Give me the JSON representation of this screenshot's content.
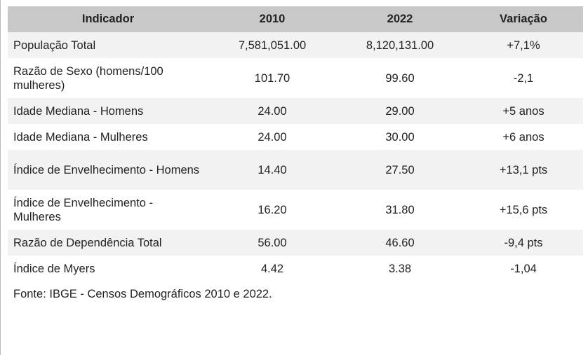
{
  "table": {
    "headers": [
      "Indicador",
      "2010",
      "2022",
      "Variação"
    ],
    "rows": [
      {
        "indicador": "População Total",
        "v2010": "7,581,051.00",
        "v2022": "8,120,131.00",
        "variacao": "+7,1%"
      },
      {
        "indicador": "Razão de Sexo (homens/100 mulheres)",
        "v2010": "101.70",
        "v2022": "99.60",
        "variacao": "-2,1"
      },
      {
        "indicador": "Idade Mediana - Homens",
        "v2010": "24.00",
        "v2022": "29.00",
        "variacao": "+5 anos"
      },
      {
        "indicador": "Idade Mediana - Mulheres",
        "v2010": "24.00",
        "v2022": "30.00",
        "variacao": "+6 anos"
      },
      {
        "indicador": "Índice de Envelhecimento - Homens",
        "v2010": "14.40",
        "v2022": "27.50",
        "variacao": "+13,1 pts"
      },
      {
        "indicador": "Índice de Envelhecimento - Mulheres",
        "v2010": "16.20",
        "v2022": "31.80",
        "variacao": "+15,6 pts"
      },
      {
        "indicador": "Razão de Dependência Total",
        "v2010": "56.00",
        "v2022": "46.60",
        "variacao": "-9,4 pts"
      },
      {
        "indicador": "Índice de Myers",
        "v2010": "4.42",
        "v2022": "3.38",
        "variacao": "-1,04"
      }
    ]
  },
  "source": "Fonte: IBGE - Censos Demográficos 2010 e 2022."
}
